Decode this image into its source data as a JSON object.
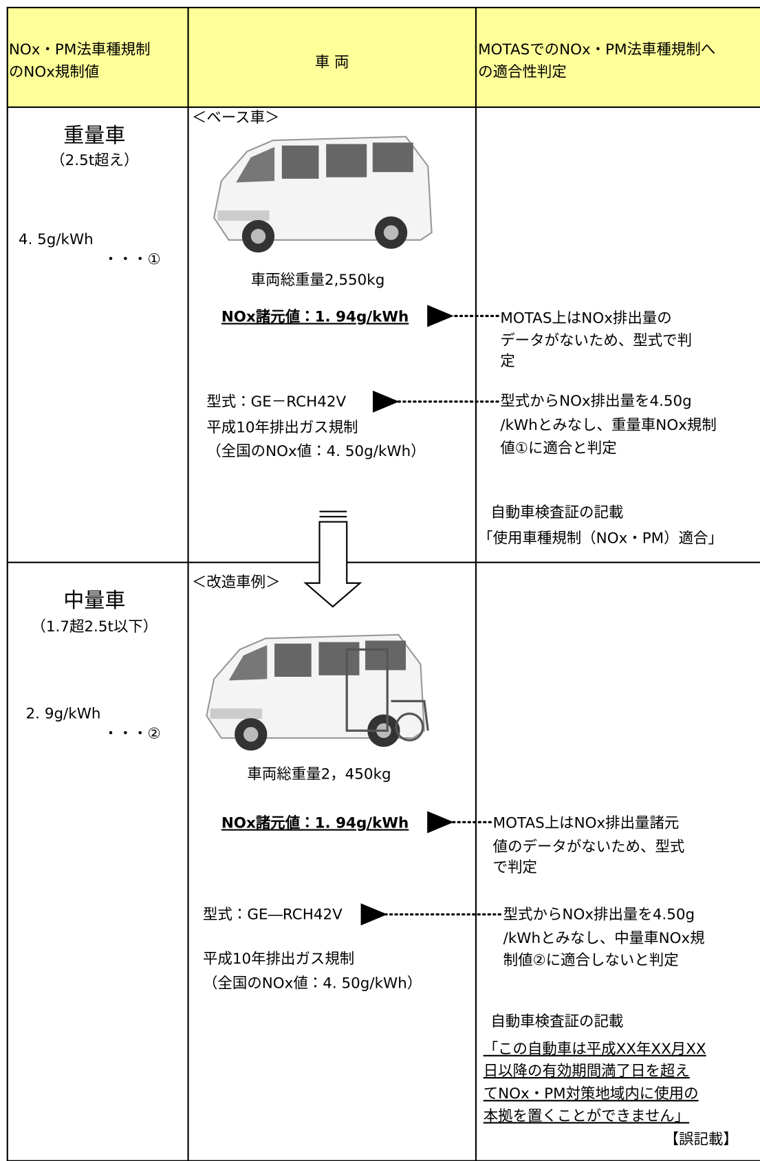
{
  "table": {
    "headers": [
      [
        "NOx・PM法車種規制",
        "のNOx規制値"
      ],
      [
        "車 両"
      ],
      [
        "MOTASでのNOx・PM法車種規制へ",
        "の適合性判定"
      ]
    ],
    "rows": [
      {
        "class": "重量車",
        "class_note": "（2.5t超え）",
        "limit": "4. 5g/kWh",
        "limit_ref": "・・・①",
        "vehicle_label": "＜ベース車＞",
        "gross_weight": "車両総重量2,550kg",
        "nox_spec": "NOx諸元値：1. 94g/kWh",
        "model": "型式：GE－RCH42V",
        "regulation": [
          "平成10年排出ガス規制",
          "（全国のNOx値：4. 50g/kWh）"
        ],
        "note_spec": [
          "MOTAS上はNOx排出量の",
          "データがないため、型式で判",
          "定"
        ],
        "note_model": [
          "型式からNOx排出量を4.50g",
          "/kWhとみなし、重量車NOx規制",
          "値①に適合と判定"
        ],
        "cert_title": "自動車検査証の記載",
        "cert_text": [
          "「使用車種規制（NOx・PM）適合」"
        ]
      },
      {
        "class": "中量車",
        "class_note": "（1.7超2.5t以下）",
        "limit": "2. 9g/kWh",
        "limit_ref": "・・・②",
        "vehicle_label": "＜改造車例＞",
        "gross_weight": "車両総重量2，450kg",
        "nox_spec": "NOx諸元値：1. 94g/kWh",
        "model": "型式：GE―RCH42V",
        "regulation": [
          "平成10年排出ガス規制",
          "（全国のNOx値：4. 50g/kWh）"
        ],
        "note_spec": [
          "MOTAS上はNOx排出量諸元",
          "値のデータがないため、型式",
          "で判定"
        ],
        "note_model": [
          "型式からNOx排出量を4.50g",
          "/kWhとみなし、中量車NOx規",
          "制値②に適合しないと判定"
        ],
        "cert_title": "自動車検査証の記載",
        "cert_text": [
          "「この自動車は平成XX年XX月XX",
          "日以降の有効期間満了日を超え",
          "てNOx・PM対策地域内に使用の",
          "本拠を置くことができません」"
        ],
        "cert_mark": "【誤記載】"
      }
    ]
  }
}
